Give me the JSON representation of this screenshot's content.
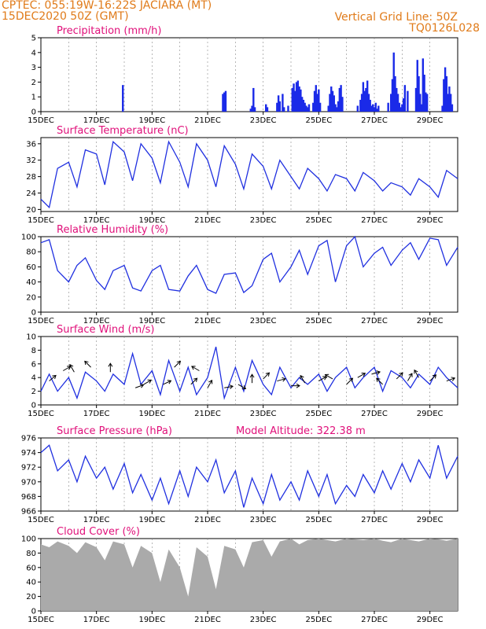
{
  "header": {
    "line1": "CPTEC:   055:19W-16:22S   JACIARA (MT)",
    "line2": "15DEC2020 50Z (GMT)",
    "grid_note": "Vertical Grid Line: 50Z",
    "code": "TQ0126L028"
  },
  "colors": {
    "line": "#2030e0",
    "bar": "#1a2ae8",
    "cloud": "#aaaaaa",
    "title": "#e0107a",
    "header": "#e07b1a"
  },
  "chart_data": [
    {
      "id": "precip",
      "type": "bar",
      "title": "Precipitation (mm/h)",
      "xticks": [
        "15DEC",
        "17DEC",
        "19DEC",
        "21DEC",
        "23DEC",
        "25DEC",
        "27DEC",
        "29DEC"
      ],
      "ylim": [
        0,
        5
      ],
      "yticks": [
        0,
        1,
        2,
        3,
        4,
        5
      ],
      "x_day": [
        2.95,
        6.55,
        6.6,
        6.65,
        7.55,
        7.6,
        7.65,
        7.7,
        8.1,
        8.15,
        8.5,
        8.55,
        8.6,
        8.7,
        8.75,
        8.9,
        9.05,
        9.1,
        9.15,
        9.2,
        9.25,
        9.3,
        9.35,
        9.4,
        9.45,
        9.5,
        9.55,
        9.6,
        9.65,
        9.8,
        9.85,
        9.9,
        9.95,
        10.0,
        10.05,
        10.35,
        10.4,
        10.45,
        10.5,
        10.55,
        10.6,
        10.65,
        10.7,
        10.75,
        10.8,
        10.85,
        11.4,
        11.5,
        11.55,
        11.6,
        11.65,
        11.7,
        11.75,
        11.8,
        11.85,
        11.9,
        11.95,
        12.0,
        12.05,
        12.1,
        12.15,
        12.5,
        12.6,
        12.65,
        12.7,
        12.75,
        12.8,
        12.85,
        12.9,
        12.95,
        13.0,
        13.05,
        13.1,
        13.2,
        13.5,
        13.55,
        13.6,
        13.65,
        13.7,
        13.75,
        13.8,
        13.85,
        13.9,
        14.45,
        14.5,
        14.55,
        14.6,
        14.65,
        14.7,
        14.75,
        14.8
      ],
      "values": [
        1.8,
        1.2,
        1.3,
        1.4,
        0.2,
        0.4,
        1.6,
        0.3,
        0.5,
        0.3,
        0.6,
        1.1,
        0.7,
        1.2,
        0.3,
        0.4,
        1.6,
        1.9,
        1.4,
        2.0,
        2.1,
        1.7,
        1.5,
        1.0,
        0.8,
        0.6,
        0.4,
        0.3,
        0.5,
        0.6,
        1.4,
        1.8,
        1.2,
        1.5,
        0.6,
        0.4,
        1.2,
        1.7,
        1.4,
        1.1,
        0.5,
        0.3,
        0.7,
        1.6,
        1.8,
        1.0,
        0.4,
        0.8,
        1.2,
        2.0,
        1.4,
        1.6,
        2.1,
        1.2,
        0.8,
        0.4,
        0.5,
        0.3,
        0.6,
        0.2,
        0.4,
        0.6,
        1.2,
        2.2,
        4.0,
        2.4,
        1.6,
        1.2,
        0.6,
        0.3,
        0.5,
        0.9,
        1.8,
        1.4,
        1.6,
        3.5,
        2.4,
        1.2,
        0.5,
        3.6,
        2.5,
        1.3,
        1.2,
        0.4,
        2.2,
        3.0,
        2.4,
        1.2,
        1.7,
        1.2,
        0.5
      ]
    },
    {
      "id": "temp",
      "type": "line",
      "title": "Surface Temperature (nC)",
      "xticks": [
        "15DEC",
        "17DEC",
        "19DEC",
        "21DEC",
        "23DEC",
        "25DEC",
        "27DEC",
        "29DEC"
      ],
      "ylim": [
        19.5,
        37.5
      ],
      "yticks": [
        20,
        24,
        28,
        32,
        36
      ],
      "x_day": [
        0,
        0.3,
        0.6,
        1.0,
        1.3,
        1.6,
        2.0,
        2.3,
        2.6,
        3.0,
        3.3,
        3.6,
        4.0,
        4.3,
        4.6,
        5.0,
        5.3,
        5.6,
        6.0,
        6.3,
        6.6,
        7.0,
        7.3,
        7.6,
        8.0,
        8.3,
        8.6,
        9.0,
        9.3,
        9.6,
        10.0,
        10.3,
        10.6,
        11.0,
        11.3,
        11.6,
        12.0,
        12.3,
        12.6,
        13.0,
        13.3,
        13.6,
        14.0,
        14.3,
        14.6,
        15.0
      ],
      "values": [
        22.5,
        20.5,
        30.0,
        31.5,
        25.5,
        34.5,
        33.5,
        26.0,
        36.5,
        34.0,
        27.0,
        36.0,
        32.5,
        26.5,
        36.5,
        31.5,
        25.5,
        36.0,
        32.0,
        25.5,
        35.5,
        31.0,
        25.0,
        33.5,
        30.5,
        25.0,
        32.0,
        28.0,
        25.0,
        30.0,
        27.5,
        24.5,
        28.5,
        27.5,
        24.5,
        29.0,
        27.0,
        24.5,
        26.5,
        25.5,
        23.5,
        27.5,
        25.5,
        23.0,
        29.5,
        27.5
      ]
    },
    {
      "id": "rh",
      "type": "line",
      "title": "Relative Humidity (%)",
      "xticks": [
        "15DEC",
        "17DEC",
        "19DEC",
        "21DEC",
        "23DEC",
        "25DEC",
        "27DEC",
        "29DEC"
      ],
      "ylim": [
        0,
        100
      ],
      "yticks": [
        0,
        20,
        40,
        60,
        80,
        100
      ],
      "x_day": [
        0,
        0.3,
        0.6,
        1.0,
        1.3,
        1.6,
        2.0,
        2.3,
        2.6,
        3.0,
        3.3,
        3.6,
        4.0,
        4.3,
        4.6,
        5.0,
        5.3,
        5.6,
        6.0,
        6.3,
        6.6,
        7.0,
        7.3,
        7.6,
        8.0,
        8.3,
        8.6,
        9.0,
        9.3,
        9.6,
        10.0,
        10.3,
        10.6,
        11.0,
        11.3,
        11.6,
        12.0,
        12.3,
        12.6,
        13.0,
        13.3,
        13.6,
        14.0,
        14.3,
        14.6,
        15.0
      ],
      "values": [
        92,
        96,
        55,
        40,
        62,
        72,
        42,
        30,
        55,
        62,
        32,
        28,
        55,
        62,
        30,
        28,
        48,
        62,
        30,
        25,
        50,
        52,
        26,
        35,
        70,
        78,
        40,
        60,
        82,
        50,
        88,
        95,
        40,
        88,
        100,
        60,
        78,
        86,
        62,
        82,
        92,
        70,
        98,
        96,
        62,
        86
      ]
    },
    {
      "id": "wind",
      "type": "line",
      "title": "Surface Wind (m/s)",
      "xticks": [
        "15DEC",
        "17DEC",
        "19DEC",
        "21DEC",
        "23DEC",
        "25DEC",
        "27DEC",
        "29DEC"
      ],
      "ylim": [
        0,
        10
      ],
      "yticks": [
        0,
        2,
        4,
        6,
        8,
        10
      ],
      "x_day": [
        0,
        0.3,
        0.6,
        1.0,
        1.3,
        1.6,
        2.0,
        2.3,
        2.6,
        3.0,
        3.3,
        3.6,
        4.0,
        4.3,
        4.6,
        5.0,
        5.3,
        5.6,
        6.0,
        6.3,
        6.6,
        7.0,
        7.3,
        7.6,
        8.0,
        8.3,
        8.6,
        9.0,
        9.3,
        9.6,
        10.0,
        10.3,
        10.6,
        11.0,
        11.3,
        11.6,
        12.0,
        12.3,
        12.6,
        13.0,
        13.3,
        13.6,
        14.0,
        14.3,
        14.6,
        15.0
      ],
      "values": [
        2.0,
        4.5,
        2.0,
        4.0,
        1.0,
        4.8,
        3.5,
        2.0,
        4.5,
        3.0,
        7.5,
        3.0,
        5.0,
        1.5,
        6.5,
        2.0,
        5.5,
        1.5,
        4.0,
        8.5,
        1.0,
        5.5,
        2.0,
        6.5,
        3.0,
        1.5,
        5.5,
        2.5,
        4.0,
        3.0,
        4.5,
        2.0,
        4.0,
        5.5,
        2.5,
        4.0,
        5.5,
        2.0,
        5.0,
        4.0,
        2.5,
        4.5,
        3.0,
        5.5,
        4.0,
        2.5
      ],
      "arrows": [
        [
          0.3,
          3.5,
          40
        ],
        [
          0.8,
          5.0,
          30
        ],
        [
          1.2,
          4.8,
          120
        ],
        [
          1.8,
          5.5,
          135
        ],
        [
          2.5,
          4.8,
          90
        ],
        [
          3.4,
          2.5,
          20
        ],
        [
          3.7,
          3.0,
          30
        ],
        [
          4.4,
          3.0,
          25
        ],
        [
          4.8,
          5.5,
          45
        ],
        [
          5.4,
          3.0,
          45
        ],
        [
          5.7,
          5.0,
          150
        ],
        [
          6.0,
          2.5,
          60
        ],
        [
          6.6,
          2.5,
          10
        ],
        [
          7.1,
          3.0,
          -30
        ],
        [
          7.6,
          3.2,
          90
        ],
        [
          8.0,
          3.8,
          45
        ],
        [
          8.5,
          3.5,
          15
        ],
        [
          9.0,
          2.8,
          0
        ],
        [
          9.5,
          3.2,
          120
        ],
        [
          10.0,
          3.5,
          30
        ],
        [
          10.5,
          3.8,
          150
        ],
        [
          11.0,
          3.0,
          45
        ],
        [
          11.4,
          4.0,
          30
        ],
        [
          11.9,
          4.5,
          15
        ],
        [
          12.3,
          3.0,
          135
        ],
        [
          12.8,
          3.8,
          45
        ],
        [
          13.2,
          3.5,
          60
        ],
        [
          13.6,
          4.0,
          120
        ],
        [
          14.0,
          3.5,
          45
        ],
        [
          14.6,
          3.5,
          20
        ]
      ]
    },
    {
      "id": "pressure",
      "type": "line",
      "title": "Surface Pressure (hPa)",
      "annotation": "Model Altitude: 322.38 m",
      "xticks": [
        "15DEC",
        "17DEC",
        "19DEC",
        "21DEC",
        "23DEC",
        "25DEC",
        "27DEC",
        "29DEC"
      ],
      "ylim": [
        966,
        976
      ],
      "yticks": [
        966,
        968,
        970,
        972,
        974,
        976
      ],
      "x_day": [
        0,
        0.3,
        0.6,
        1.0,
        1.3,
        1.6,
        2.0,
        2.3,
        2.6,
        3.0,
        3.3,
        3.6,
        4.0,
        4.3,
        4.6,
        5.0,
        5.3,
        5.6,
        6.0,
        6.3,
        6.6,
        7.0,
        7.3,
        7.6,
        8.0,
        8.3,
        8.6,
        9.0,
        9.3,
        9.6,
        10.0,
        10.3,
        10.6,
        11.0,
        11.3,
        11.6,
        12.0,
        12.3,
        12.6,
        13.0,
        13.3,
        13.6,
        14.0,
        14.3,
        14.6,
        15.0
      ],
      "values": [
        974.0,
        975.0,
        971.5,
        973.0,
        970.0,
        973.5,
        970.5,
        972.0,
        969.0,
        972.5,
        968.5,
        971.0,
        967.5,
        970.5,
        967.0,
        971.5,
        968.0,
        972.0,
        970.0,
        973.0,
        968.5,
        971.5,
        966.5,
        970.5,
        967.0,
        971.0,
        967.5,
        970.0,
        967.5,
        971.5,
        968.0,
        971.0,
        967.0,
        969.5,
        968.0,
        971.0,
        968.5,
        971.5,
        969.0,
        972.5,
        970.0,
        973.0,
        970.5,
        975.0,
        970.5,
        973.5
      ]
    },
    {
      "id": "cloud",
      "type": "area",
      "title": "Cloud Cover (%)",
      "xticks": [
        "15DEC",
        "17DEC",
        "19DEC",
        "21DEC",
        "23DEC",
        "25DEC",
        "27DEC",
        "29DEC"
      ],
      "ylim": [
        0,
        100
      ],
      "yticks": [
        0,
        20,
        40,
        60,
        80,
        100
      ],
      "x_day": [
        0,
        0.3,
        0.6,
        1.0,
        1.3,
        1.6,
        2.0,
        2.3,
        2.6,
        3.0,
        3.3,
        3.6,
        4.0,
        4.3,
        4.6,
        5.0,
        5.3,
        5.6,
        6.0,
        6.3,
        6.6,
        7.0,
        7.3,
        7.6,
        8.0,
        8.3,
        8.6,
        9.0,
        9.3,
        9.6,
        10.0,
        10.3,
        10.6,
        11.0,
        11.3,
        11.6,
        12.0,
        12.3,
        12.6,
        13.0,
        13.3,
        13.6,
        14.0,
        14.3,
        14.6,
        15.0
      ],
      "values": [
        92,
        88,
        96,
        90,
        80,
        95,
        88,
        70,
        96,
        92,
        60,
        90,
        80,
        40,
        85,
        60,
        20,
        88,
        75,
        30,
        90,
        85,
        60,
        95,
        98,
        75,
        96,
        100,
        92,
        98,
        100,
        98,
        96,
        100,
        99,
        98,
        100,
        97,
        95,
        100,
        98,
        96,
        100,
        99,
        97,
        100
      ]
    }
  ]
}
